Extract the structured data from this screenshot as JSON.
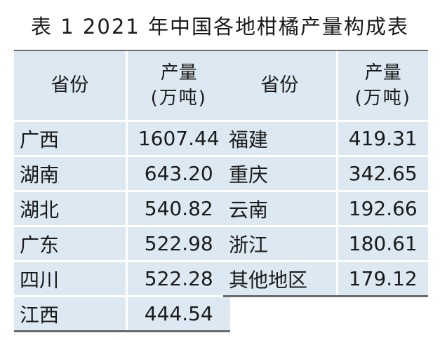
{
  "title": "表 1  2021 年中国各地柑橘产量构成表",
  "columns": {
    "province": "省份",
    "output": "产量",
    "unit": "(万吨)"
  },
  "left_rows": [
    {
      "province": "广西",
      "value": "1607.44"
    },
    {
      "province": "湖南",
      "value": "643.20"
    },
    {
      "province": "湖北",
      "value": "540.82"
    },
    {
      "province": "广东",
      "value": "522.98"
    },
    {
      "province": "四川",
      "value": "522.28"
    },
    {
      "province": "江西",
      "value": "444.54"
    }
  ],
  "right_rows": [
    {
      "province": "福建",
      "value": "419.31"
    },
    {
      "province": "重庆",
      "value": "342.65"
    },
    {
      "province": "云南",
      "value": "192.66"
    },
    {
      "province": "浙江",
      "value": "180.61"
    },
    {
      "province": "其他地区",
      "value": "179.12"
    }
  ],
  "colors": {
    "cell_background": "#dde9f2",
    "rule": "#6b6b6b"
  }
}
